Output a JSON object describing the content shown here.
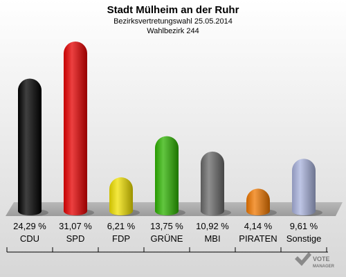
{
  "chart_data": {
    "type": "bar",
    "title": "Stadt Mülheim an der Ruhr",
    "subtitle_1": "Bezirksvertretungswahl 25.05.2014",
    "subtitle_2": "Wahlbezirk 244",
    "categories": [
      "CDU",
      "SPD",
      "FDP",
      "GRÜNE",
      "MBI",
      "PIRATEN",
      "Sonstige"
    ],
    "values": [
      24.29,
      31.07,
      6.21,
      13.75,
      10.92,
      4.14,
      9.61
    ],
    "value_labels": [
      "24,29 %",
      "31,07 %",
      "6,21 %",
      "13,75 %",
      "10,92 %",
      "4,14 %",
      "9,61 %"
    ],
    "colors": [
      "#000000",
      "#e60000",
      "#f0e000",
      "#2db300",
      "#6a6a6a",
      "#f07800",
      "#a8b2dc"
    ],
    "ylim": [
      0,
      31.07
    ],
    "grid": false,
    "legend": "none"
  },
  "logo": {
    "line1": "VOTE",
    "line2": "MANAGER"
  }
}
